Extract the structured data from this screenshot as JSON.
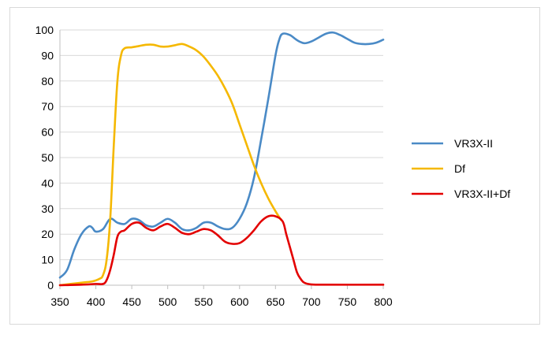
{
  "chart_data": {
    "type": "line",
    "title": "",
    "xlabel": "",
    "ylabel": "",
    "xlim": [
      350,
      800
    ],
    "ylim": [
      0,
      100
    ],
    "x_ticks": [
      350,
      400,
      450,
      500,
      550,
      600,
      650,
      700,
      750,
      800
    ],
    "y_ticks": [
      0,
      10,
      20,
      30,
      40,
      50,
      60,
      70,
      80,
      90,
      100
    ],
    "grid": "horizontal",
    "legend_position": "right",
    "series": [
      {
        "name": "VR3X-II",
        "color": "#4a8ac6",
        "points": [
          [
            350,
            3
          ],
          [
            360,
            6
          ],
          [
            370,
            14
          ],
          [
            380,
            20
          ],
          [
            390,
            23
          ],
          [
            395,
            22.5
          ],
          [
            400,
            21
          ],
          [
            410,
            22
          ],
          [
            420,
            26
          ],
          [
            430,
            24.5
          ],
          [
            440,
            24
          ],
          [
            450,
            26
          ],
          [
            460,
            25.5
          ],
          [
            470,
            23.5
          ],
          [
            480,
            23
          ],
          [
            490,
            24.5
          ],
          [
            500,
            26
          ],
          [
            510,
            24.5
          ],
          [
            520,
            22
          ],
          [
            530,
            21.5
          ],
          [
            540,
            22.5
          ],
          [
            550,
            24.5
          ],
          [
            560,
            24.5
          ],
          [
            570,
            23
          ],
          [
            580,
            22
          ],
          [
            590,
            22.5
          ],
          [
            600,
            26
          ],
          [
            610,
            32
          ],
          [
            620,
            42
          ],
          [
            630,
            57
          ],
          [
            640,
            73
          ],
          [
            650,
            90
          ],
          [
            655,
            96
          ],
          [
            660,
            98.5
          ],
          [
            670,
            98
          ],
          [
            680,
            96
          ],
          [
            690,
            94.8
          ],
          [
            700,
            95.5
          ],
          [
            710,
            97
          ],
          [
            720,
            98.5
          ],
          [
            730,
            99
          ],
          [
            740,
            98
          ],
          [
            750,
            96.5
          ],
          [
            760,
            95
          ],
          [
            770,
            94.5
          ],
          [
            780,
            94.5
          ],
          [
            790,
            95
          ],
          [
            800,
            96.2
          ]
        ]
      },
      {
        "name": "Df",
        "color": "#f5b800",
        "points": [
          [
            350,
            0
          ],
          [
            380,
            1
          ],
          [
            395,
            1.5
          ],
          [
            405,
            2.5
          ],
          [
            410,
            4
          ],
          [
            415,
            10
          ],
          [
            420,
            26
          ],
          [
            425,
            55
          ],
          [
            430,
            80
          ],
          [
            435,
            90
          ],
          [
            440,
            92.8
          ],
          [
            450,
            93.2
          ],
          [
            460,
            93.7
          ],
          [
            470,
            94.2
          ],
          [
            480,
            94.2
          ],
          [
            490,
            93.5
          ],
          [
            500,
            93.5
          ],
          [
            510,
            94
          ],
          [
            520,
            94.5
          ],
          [
            530,
            93.5
          ],
          [
            540,
            92
          ],
          [
            550,
            89.5
          ],
          [
            560,
            86
          ],
          [
            570,
            82
          ],
          [
            580,
            77
          ],
          [
            590,
            71
          ],
          [
            600,
            63
          ],
          [
            610,
            55
          ],
          [
            620,
            47
          ],
          [
            630,
            40
          ],
          [
            640,
            34
          ],
          [
            650,
            29
          ],
          [
            658,
            25.5
          ]
        ]
      },
      {
        "name": "VR3X-II+Df",
        "color": "#e30000",
        "points": [
          [
            350,
            0
          ],
          [
            380,
            0.2
          ],
          [
            400,
            0.5
          ],
          [
            410,
            0.5
          ],
          [
            415,
            2
          ],
          [
            420,
            6
          ],
          [
            425,
            12
          ],
          [
            430,
            19
          ],
          [
            435,
            21
          ],
          [
            440,
            21.5
          ],
          [
            450,
            24
          ],
          [
            460,
            24.5
          ],
          [
            470,
            22.5
          ],
          [
            480,
            21.5
          ],
          [
            490,
            23
          ],
          [
            500,
            24
          ],
          [
            510,
            22.5
          ],
          [
            520,
            20.5
          ],
          [
            530,
            20
          ],
          [
            540,
            21
          ],
          [
            550,
            22
          ],
          [
            560,
            21.5
          ],
          [
            570,
            19.5
          ],
          [
            580,
            17
          ],
          [
            590,
            16.2
          ],
          [
            600,
            16.5
          ],
          [
            610,
            18.5
          ],
          [
            620,
            21.5
          ],
          [
            630,
            25
          ],
          [
            640,
            27
          ],
          [
            650,
            27
          ],
          [
            660,
            25
          ],
          [
            665,
            20
          ],
          [
            670,
            15
          ],
          [
            675,
            10
          ],
          [
            680,
            5
          ],
          [
            685,
            2.5
          ],
          [
            690,
            1
          ],
          [
            700,
            0.3
          ],
          [
            720,
            0.2
          ],
          [
            800,
            0.2
          ]
        ]
      }
    ]
  }
}
